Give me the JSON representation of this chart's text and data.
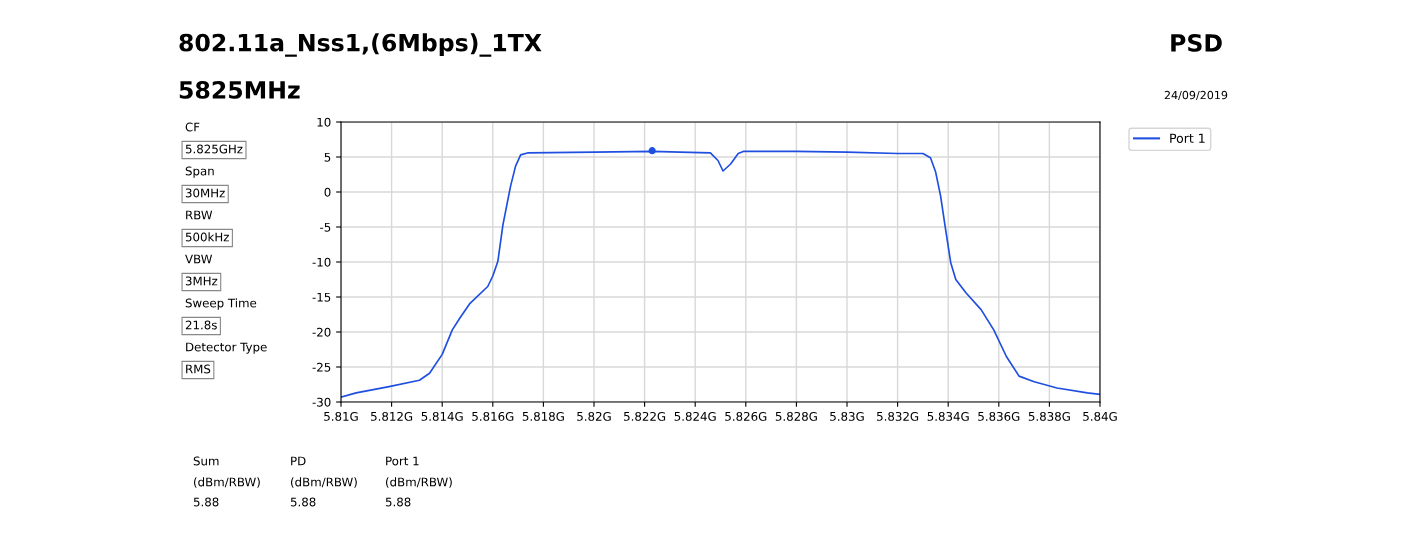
{
  "chart_data": {
    "type": "line",
    "title": "802.11a_Nss1,(6Mbps)_1TX",
    "subtitle": "5825MHz",
    "annotations": [
      "PSD",
      "24/09/2019",
      "CF",
      "5.825GHz",
      "Span",
      "30MHz",
      "RBW",
      "500kHz",
      "VBW",
      "3MHz",
      "Sweep Time",
      "21.8s",
      "Detector Type",
      "RMS",
      "Sum",
      "PD",
      "Port 1",
      "(dBm/RBW)",
      "(dBm/RBW)",
      "(dBm/RBW)",
      "5.88",
      "5.88",
      "5.88"
    ],
    "series": [
      {
        "name": "Port 1",
        "color": "#1f4fe0",
        "x": [
          5.81,
          5.8106,
          5.8119,
          5.8131,
          5.8135,
          5.814,
          5.8144,
          5.8147,
          5.8151,
          5.8158,
          5.816,
          5.8162,
          5.8164,
          5.8167,
          5.8169,
          5.8171,
          5.8174,
          5.82,
          5.8223,
          5.8234,
          5.8246,
          5.8249,
          5.8251,
          5.8254,
          5.8257,
          5.8259,
          5.828,
          5.83,
          5.832,
          5.833,
          5.8333,
          5.8335,
          5.8337,
          5.8339,
          5.8341,
          5.8343,
          5.8347,
          5.8353,
          5.8358,
          5.8363,
          5.8368,
          5.8374,
          5.8383,
          5.8395,
          5.84
        ],
        "values": [
          -29.3,
          -28.7,
          -27.8,
          -26.9,
          -25.9,
          -23.2,
          -19.7,
          -18.0,
          -15.9,
          -13.5,
          -12.0,
          -9.9,
          -4.7,
          0.8,
          3.7,
          5.3,
          5.6,
          5.7,
          5.8,
          5.7,
          5.6,
          4.5,
          3.0,
          4.0,
          5.5,
          5.8,
          5.8,
          5.7,
          5.5,
          5.5,
          4.9,
          2.9,
          -0.6,
          -5.4,
          -10.1,
          -12.5,
          -14.4,
          -16.8,
          -19.7,
          -23.5,
          -26.3,
          -27.1,
          -28.0,
          -28.7,
          -28.9
        ]
      },
      {
        "type": "scatter",
        "color": "#1f4fe0",
        "x": [
          5.8223
        ],
        "values": [
          5.9
        ]
      }
    ],
    "xlim": [
      5.81,
      5.84
    ],
    "xticks": [
      {
        "value": 5.81,
        "label": "5.81G"
      },
      {
        "value": 5.812,
        "label": "5.812G"
      },
      {
        "value": 5.814,
        "label": "5.814G"
      },
      {
        "value": 5.816,
        "label": "5.816G"
      },
      {
        "value": 5.818,
        "label": "5.818G"
      },
      {
        "value": 5.82,
        "label": "5.82G"
      },
      {
        "value": 5.822,
        "label": "5.822G"
      },
      {
        "value": 5.824,
        "label": "5.824G"
      },
      {
        "value": 5.826,
        "label": "5.826G"
      },
      {
        "value": 5.828,
        "label": "5.828G"
      },
      {
        "value": 5.83,
        "label": "5.83G"
      },
      {
        "value": 5.832,
        "label": "5.832G"
      },
      {
        "value": 5.834,
        "label": "5.834G"
      },
      {
        "value": 5.836,
        "label": "5.836G"
      },
      {
        "value": 5.838,
        "label": "5.838G"
      },
      {
        "value": 5.84,
        "label": "5.84G"
      }
    ],
    "ylim": [
      -30,
      10
    ],
    "yticks": [
      -30,
      -25,
      -20,
      -15,
      -10,
      -5,
      0,
      5,
      10
    ],
    "grid": true,
    "legend": "top right"
  }
}
